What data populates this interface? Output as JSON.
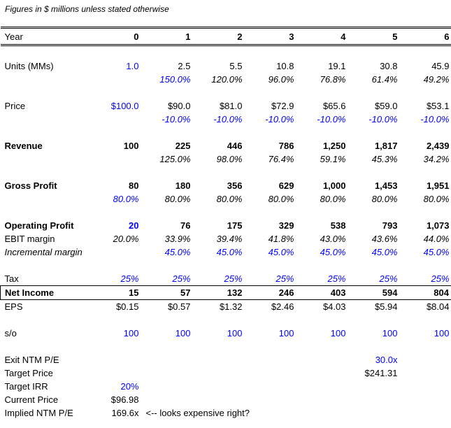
{
  "title": "Figures in $ millions unless stated otherwise",
  "colors": {
    "input_blue": "#0000ff",
    "text_black": "#000000",
    "border_black": "#000000",
    "background": "#ffffff"
  },
  "table": {
    "header_label": "Year",
    "years": [
      "0",
      "1",
      "2",
      "3",
      "4",
      "5",
      "6"
    ],
    "rows": [
      {
        "spacer": true
      },
      {
        "name": "units",
        "label": "Units (MMs)",
        "label_style": "",
        "cells": [
          [
            "1.0",
            "blue"
          ],
          [
            "2.5",
            ""
          ],
          [
            "5.5",
            ""
          ],
          [
            "10.8",
            ""
          ],
          [
            "19.1",
            ""
          ],
          [
            "30.8",
            ""
          ],
          [
            "45.9",
            ""
          ]
        ]
      },
      {
        "name": "units-growth",
        "label": "",
        "label_style": "",
        "cells": [
          [
            "",
            ""
          ],
          [
            "150.0%",
            "blue italic"
          ],
          [
            "120.0%",
            "italic"
          ],
          [
            "96.0%",
            "italic"
          ],
          [
            "76.8%",
            "italic"
          ],
          [
            "61.4%",
            "italic"
          ],
          [
            "49.2%",
            "italic"
          ]
        ]
      },
      {
        "spacer": true
      },
      {
        "name": "price",
        "label": "Price",
        "label_style": "",
        "cells": [
          [
            "$100.0",
            "blue"
          ],
          [
            "$90.0",
            ""
          ],
          [
            "$81.0",
            ""
          ],
          [
            "$72.9",
            ""
          ],
          [
            "$65.6",
            ""
          ],
          [
            "$59.0",
            ""
          ],
          [
            "$53.1",
            ""
          ]
        ]
      },
      {
        "name": "price-growth",
        "label": "",
        "label_style": "",
        "cells": [
          [
            "",
            ""
          ],
          [
            "-10.0%",
            "blue italic"
          ],
          [
            "-10.0%",
            "blue italic"
          ],
          [
            "-10.0%",
            "blue italic"
          ],
          [
            "-10.0%",
            "blue italic"
          ],
          [
            "-10.0%",
            "blue italic"
          ],
          [
            "-10.0%",
            "blue italic"
          ]
        ]
      },
      {
        "spacer": true
      },
      {
        "name": "revenue",
        "label": "Revenue",
        "label_style": "bold",
        "cells": [
          [
            "100",
            "bold"
          ],
          [
            "225",
            "bold"
          ],
          [
            "446",
            "bold"
          ],
          [
            "786",
            "bold"
          ],
          [
            "1,250",
            "bold"
          ],
          [
            "1,817",
            "bold"
          ],
          [
            "2,439",
            "bold"
          ]
        ]
      },
      {
        "name": "revenue-growth",
        "label": "",
        "label_style": "",
        "cells": [
          [
            "",
            ""
          ],
          [
            "125.0%",
            "italic"
          ],
          [
            "98.0%",
            "italic"
          ],
          [
            "76.4%",
            "italic"
          ],
          [
            "59.1%",
            "italic"
          ],
          [
            "45.3%",
            "italic"
          ],
          [
            "34.2%",
            "italic"
          ]
        ]
      },
      {
        "spacer": true
      },
      {
        "name": "gross-profit",
        "label": "Gross Profit",
        "label_style": "bold",
        "cells": [
          [
            "80",
            "bold"
          ],
          [
            "180",
            "bold"
          ],
          [
            "356",
            "bold"
          ],
          [
            "629",
            "bold"
          ],
          [
            "1,000",
            "bold"
          ],
          [
            "1,453",
            "bold"
          ],
          [
            "1,951",
            "bold"
          ]
        ]
      },
      {
        "name": "gross-margin",
        "label": "",
        "label_style": "",
        "cells": [
          [
            "80.0%",
            "blue italic"
          ],
          [
            "80.0%",
            "italic"
          ],
          [
            "80.0%",
            "italic"
          ],
          [
            "80.0%",
            "italic"
          ],
          [
            "80.0%",
            "italic"
          ],
          [
            "80.0%",
            "italic"
          ],
          [
            "80.0%",
            "italic"
          ]
        ]
      },
      {
        "spacer": true
      },
      {
        "name": "operating-profit",
        "label": "Operating Profit",
        "label_style": "bold",
        "cells": [
          [
            "20",
            "blue bold"
          ],
          [
            "76",
            "bold"
          ],
          [
            "175",
            "bold"
          ],
          [
            "329",
            "bold"
          ],
          [
            "538",
            "bold"
          ],
          [
            "793",
            "bold"
          ],
          [
            "1,073",
            "bold"
          ]
        ]
      },
      {
        "name": "ebit-margin",
        "label": "EBIT margin",
        "label_style": "",
        "cells": [
          [
            "20.0%",
            "italic"
          ],
          [
            "33.9%",
            "italic"
          ],
          [
            "39.4%",
            "italic"
          ],
          [
            "41.8%",
            "italic"
          ],
          [
            "43.0%",
            "italic"
          ],
          [
            "43.6%",
            "italic"
          ],
          [
            "44.0%",
            "italic"
          ]
        ]
      },
      {
        "name": "incremental-margin",
        "label": "Incremental margin",
        "label_style": "italic",
        "cells": [
          [
            "",
            ""
          ],
          [
            "45.0%",
            "blue italic"
          ],
          [
            "45.0%",
            "blue italic"
          ],
          [
            "45.0%",
            "blue italic"
          ],
          [
            "45.0%",
            "blue italic"
          ],
          [
            "45.0%",
            "blue italic"
          ],
          [
            "45.0%",
            "blue italic"
          ]
        ]
      },
      {
        "spacer": true
      },
      {
        "name": "tax",
        "label": "Tax",
        "label_style": "",
        "cells": [
          [
            "25%",
            "blue italic"
          ],
          [
            "25%",
            "blue italic"
          ],
          [
            "25%",
            "blue italic"
          ],
          [
            "25%",
            "blue italic"
          ],
          [
            "25%",
            "blue italic"
          ],
          [
            "25%",
            "blue italic"
          ],
          [
            "25%",
            "blue italic"
          ]
        ]
      },
      {
        "name": "net-income",
        "label": "Net Income",
        "label_style": "bold",
        "boxed": true,
        "cells": [
          [
            "15",
            "bold"
          ],
          [
            "57",
            "bold"
          ],
          [
            "132",
            "bold"
          ],
          [
            "246",
            "bold"
          ],
          [
            "403",
            "bold"
          ],
          [
            "594",
            "bold"
          ],
          [
            "804",
            "bold"
          ]
        ]
      },
      {
        "name": "eps",
        "label": "EPS",
        "label_style": "",
        "cells": [
          [
            "$0.15",
            ""
          ],
          [
            "$0.57",
            ""
          ],
          [
            "$1.32",
            ""
          ],
          [
            "$2.46",
            ""
          ],
          [
            "$4.03",
            ""
          ],
          [
            "$5.94",
            ""
          ],
          [
            "$8.04",
            ""
          ]
        ]
      },
      {
        "spacer": true
      },
      {
        "name": "shares-outstanding",
        "label": "s/o",
        "label_style": "",
        "cells": [
          [
            "100",
            "blue"
          ],
          [
            "100",
            "blue"
          ],
          [
            "100",
            "blue"
          ],
          [
            "100",
            "blue"
          ],
          [
            "100",
            "blue"
          ],
          [
            "100",
            "blue"
          ],
          [
            "100",
            "blue"
          ]
        ]
      },
      {
        "spacer": true
      },
      {
        "name": "exit-ntm-pe",
        "label": "Exit NTM P/E",
        "label_style": "",
        "cells": [
          [
            "",
            ""
          ],
          [
            "",
            ""
          ],
          [
            "",
            ""
          ],
          [
            "",
            ""
          ],
          [
            "",
            ""
          ],
          [
            "30.0x",
            "blue"
          ],
          [
            "",
            ""
          ]
        ]
      },
      {
        "name": "target-price",
        "label": "Target Price",
        "label_style": "",
        "cells": [
          [
            "",
            ""
          ],
          [
            "",
            ""
          ],
          [
            "",
            ""
          ],
          [
            "",
            ""
          ],
          [
            "",
            ""
          ],
          [
            "$241.31",
            ""
          ],
          [
            "",
            ""
          ]
        ]
      },
      {
        "name": "target-irr",
        "label": "Target IRR",
        "label_style": "",
        "cells": [
          [
            "20%",
            "blue"
          ],
          [
            "",
            ""
          ],
          [
            "",
            ""
          ],
          [
            "",
            ""
          ],
          [
            "",
            ""
          ],
          [
            "",
            ""
          ],
          [
            "",
            ""
          ]
        ]
      },
      {
        "name": "current-price",
        "label": "Current Price",
        "label_style": "",
        "cells": [
          [
            "$96.98",
            ""
          ],
          [
            "",
            ""
          ],
          [
            "",
            ""
          ],
          [
            "",
            ""
          ],
          [
            "",
            ""
          ],
          [
            "",
            ""
          ],
          [
            "",
            ""
          ]
        ]
      },
      {
        "name": "implied-ntm-pe",
        "label": "Implied NTM P/E",
        "label_style": "",
        "cells": [
          [
            "169.6x",
            ""
          ]
        ],
        "note": "<-- looks expensive right?"
      }
    ]
  }
}
